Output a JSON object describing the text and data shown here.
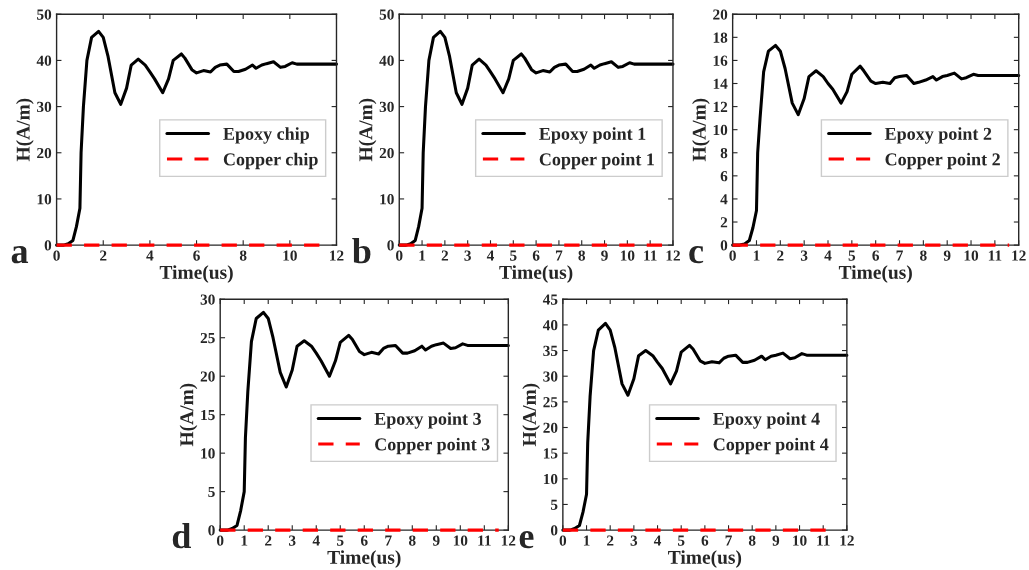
{
  "chart_data": [
    {
      "type": "line",
      "xlabel": "Time(us)",
      "ylabel": "H(A/m)",
      "xlim": [
        0,
        12
      ],
      "xticks": [
        0,
        2,
        4,
        6,
        8,
        10,
        {
          "value": 12,
          "label": "12"
        }
      ],
      "ylim": [
        0,
        50
      ],
      "yticks": [
        0,
        10,
        20,
        30,
        40,
        50
      ],
      "legend": "right",
      "annotations": [
        "a"
      ],
      "series": [
        {
          "name": "Epoxy chip",
          "color": "#000000",
          "line_style": "solid",
          "x": [
            0,
            0.3,
            0.5,
            0.7,
            0.85,
            1.0,
            1.05,
            1.15,
            1.3,
            1.5,
            1.8,
            2.0,
            2.2,
            2.5,
            2.75,
            3.0,
            3.2,
            3.5,
            3.8,
            4.0,
            4.2,
            4.55,
            4.8,
            5.0,
            5.35,
            5.5,
            5.8,
            6.0,
            6.3,
            6.6,
            6.8,
            7.0,
            7.3,
            7.6,
            7.8,
            8.1,
            8.4,
            8.55,
            8.8,
            9.0,
            9.3,
            9.6,
            9.8,
            10.1,
            10.3,
            12
          ],
          "values": [
            0,
            0,
            0.3,
            1,
            4,
            8,
            20,
            30,
            40,
            45,
            46.3,
            45,
            41,
            33,
            30.5,
            34,
            39,
            40.3,
            39,
            37.5,
            36,
            33,
            36,
            40,
            41.4,
            40.5,
            38,
            37.3,
            37.8,
            37.5,
            38.5,
            39,
            39.2,
            37.6,
            37.6,
            38.1,
            39,
            38.3,
            39,
            39.3,
            39.7,
            38.5,
            38.7,
            39.5,
            39.2,
            39.2
          ]
        },
        {
          "name": "Copper chip",
          "color": "#ff0000",
          "line_style": "dashed",
          "x": [
            0,
            11.6
          ],
          "values": [
            0,
            0
          ]
        }
      ]
    },
    {
      "type": "line",
      "xlabel": "Time(us)",
      "ylabel": "H(A/m)",
      "xlim": [
        0,
        12
      ],
      "xticks": [
        0,
        1,
        2,
        3,
        4,
        5,
        6,
        7,
        8,
        9,
        10,
        11,
        12
      ],
      "ylim": [
        0,
        50
      ],
      "yticks": [
        0,
        10,
        20,
        30,
        40,
        50
      ],
      "legend": "right",
      "annotations": [
        "b"
      ],
      "series": [
        {
          "name": "Epoxy point 1",
          "color": "#000000",
          "line_style": "solid",
          "x": [
            0,
            0.3,
            0.5,
            0.7,
            0.85,
            1.0,
            1.05,
            1.15,
            1.3,
            1.5,
            1.8,
            2.0,
            2.2,
            2.5,
            2.75,
            3.0,
            3.2,
            3.5,
            3.8,
            4.0,
            4.2,
            4.55,
            4.8,
            5.0,
            5.35,
            5.5,
            5.8,
            6.0,
            6.3,
            6.6,
            6.8,
            7.0,
            7.3,
            7.6,
            7.8,
            8.1,
            8.4,
            8.55,
            8.8,
            9.0,
            9.3,
            9.6,
            9.8,
            10.1,
            10.3,
            12
          ],
          "values": [
            0,
            0,
            0.3,
            1,
            4,
            8,
            20,
            30,
            40,
            45,
            46.3,
            45,
            41,
            33,
            30.5,
            34,
            39,
            40.3,
            39,
            37.5,
            36,
            33,
            36,
            40,
            41.4,
            40.5,
            38,
            37.3,
            37.8,
            37.5,
            38.5,
            39,
            39.2,
            37.6,
            37.6,
            38.1,
            39,
            38.3,
            39,
            39.3,
            39.7,
            38.5,
            38.7,
            39.5,
            39.2,
            39.2
          ]
        },
        {
          "name": "Copper point 1",
          "color": "#ff0000",
          "line_style": "dashed",
          "x": [
            0,
            11.6
          ],
          "values": [
            0,
            0
          ]
        }
      ]
    },
    {
      "type": "line",
      "xlabel": "Time(us)",
      "ylabel": "H(A/m)",
      "xlim": [
        0,
        12
      ],
      "xticks": [
        0,
        1,
        2,
        3,
        4,
        5,
        6,
        7,
        8,
        9,
        10,
        11,
        12
      ],
      "ylim": [
        0,
        20
      ],
      "yticks": [
        0,
        2,
        4,
        6,
        8,
        10,
        12,
        14,
        16,
        18,
        20
      ],
      "legend": "right",
      "annotations": [
        "c"
      ],
      "series": [
        {
          "name": "Epoxy point 2",
          "color": "#000000",
          "line_style": "solid",
          "x": [
            0,
            0.3,
            0.5,
            0.7,
            0.85,
            1.0,
            1.05,
            1.15,
            1.3,
            1.5,
            1.8,
            2.0,
            2.2,
            2.5,
            2.75,
            3.0,
            3.2,
            3.5,
            3.8,
            4.0,
            4.2,
            4.55,
            4.8,
            5.0,
            5.35,
            5.5,
            5.8,
            6.0,
            6.3,
            6.6,
            6.8,
            7.0,
            7.3,
            7.6,
            7.8,
            8.1,
            8.4,
            8.55,
            8.8,
            9.0,
            9.3,
            9.6,
            9.8,
            10.1,
            10.3,
            12
          ],
          "values": [
            0,
            0,
            0.1,
            0.4,
            1.5,
            3,
            8,
            11,
            15,
            16.8,
            17.3,
            16.8,
            15.3,
            12.3,
            11.3,
            12.7,
            14.6,
            15.1,
            14.6,
            14,
            13.5,
            12.3,
            13.3,
            14.8,
            15.5,
            15.1,
            14.2,
            14,
            14.1,
            14,
            14.5,
            14.6,
            14.7,
            14,
            14.1,
            14.3,
            14.6,
            14.3,
            14.6,
            14.7,
            14.9,
            14.4,
            14.5,
            14.8,
            14.7,
            14.7
          ]
        },
        {
          "name": "Copper point 2",
          "color": "#ff0000",
          "line_style": "dashed",
          "x": [
            0,
            11.6
          ],
          "values": [
            0,
            0
          ]
        }
      ]
    },
    {
      "type": "line",
      "xlabel": "Time(us)",
      "ylabel": "H(A/m)",
      "xlim": [
        0,
        12
      ],
      "xticks": [
        0,
        1,
        2,
        3,
        4,
        5,
        6,
        7,
        8,
        9,
        10,
        11,
        12
      ],
      "ylim": [
        0,
        30
      ],
      "yticks": [
        0,
        5,
        10,
        15,
        20,
        25,
        30
      ],
      "legend": "right",
      "annotations": [
        "d"
      ],
      "series": [
        {
          "name": "Epoxy point 3",
          "color": "#000000",
          "line_style": "solid",
          "x": [
            0,
            0.3,
            0.5,
            0.7,
            0.85,
            1.0,
            1.05,
            1.15,
            1.3,
            1.5,
            1.8,
            2.0,
            2.2,
            2.5,
            2.75,
            3.0,
            3.2,
            3.5,
            3.8,
            4.0,
            4.2,
            4.55,
            4.8,
            5.0,
            5.35,
            5.5,
            5.8,
            6.0,
            6.3,
            6.6,
            6.8,
            7.0,
            7.3,
            7.6,
            7.8,
            8.1,
            8.4,
            8.55,
            8.8,
            9.0,
            9.3,
            9.6,
            9.8,
            10.1,
            10.3,
            12
          ],
          "values": [
            0,
            0,
            0.2,
            0.6,
            2.5,
            5,
            12,
            18,
            24.5,
            27.5,
            28.3,
            27.5,
            25,
            20.5,
            18.6,
            20.8,
            23.9,
            24.6,
            23.9,
            23,
            22,
            20,
            22,
            24.4,
            25.3,
            24.8,
            23.2,
            22.8,
            23.1,
            22.9,
            23.6,
            23.9,
            24,
            23,
            23,
            23.3,
            23.9,
            23.4,
            23.9,
            24.1,
            24.3,
            23.6,
            23.7,
            24.2,
            24,
            24
          ]
        },
        {
          "name": "Copper point 3",
          "color": "#ff0000",
          "line_style": "dashed",
          "x": [
            0,
            11.6
          ],
          "values": [
            0,
            0
          ]
        }
      ]
    },
    {
      "type": "line",
      "xlabel": "Time(us)",
      "ylabel": "H(A/m)",
      "xlim": [
        0,
        12
      ],
      "xticks": [
        0,
        1,
        2,
        3,
        4,
        5,
        6,
        7,
        8,
        9,
        10,
        11,
        12
      ],
      "ylim": [
        0,
        45
      ],
      "yticks": [
        0,
        5,
        10,
        15,
        20,
        25,
        30,
        35,
        40,
        45
      ],
      "legend": "right",
      "annotations": [
        "e"
      ],
      "series": [
        {
          "name": "Epoxy point 4",
          "color": "#000000",
          "line_style": "solid",
          "x": [
            0,
            0.3,
            0.5,
            0.7,
            0.85,
            1.0,
            1.05,
            1.15,
            1.3,
            1.5,
            1.8,
            2.0,
            2.2,
            2.5,
            2.75,
            3.0,
            3.2,
            3.5,
            3.8,
            4.0,
            4.2,
            4.55,
            4.8,
            5.0,
            5.35,
            5.5,
            5.8,
            6.0,
            6.3,
            6.6,
            6.8,
            7.0,
            7.3,
            7.6,
            7.8,
            8.1,
            8.4,
            8.55,
            8.8,
            9.0,
            9.3,
            9.6,
            9.8,
            10.1,
            10.3,
            12
          ],
          "values": [
            0,
            0,
            0.3,
            0.9,
            3.5,
            7,
            17,
            26,
            35,
            39,
            40.3,
            39,
            35.5,
            28.5,
            26.3,
            29.5,
            34,
            35,
            34,
            32.7,
            31.5,
            28.5,
            31,
            34.7,
            36,
            35.3,
            33,
            32.5,
            32.8,
            32.6,
            33.5,
            33.9,
            34.1,
            32.7,
            32.7,
            33.1,
            33.9,
            33.2,
            33.9,
            34.1,
            34.5,
            33.4,
            33.6,
            34.4,
            34.1,
            34.1
          ]
        },
        {
          "name": "Copper point 4",
          "color": "#ff0000",
          "line_style": "dashed",
          "x": [
            0,
            11.6
          ],
          "values": [
            0,
            0
          ]
        }
      ]
    }
  ]
}
